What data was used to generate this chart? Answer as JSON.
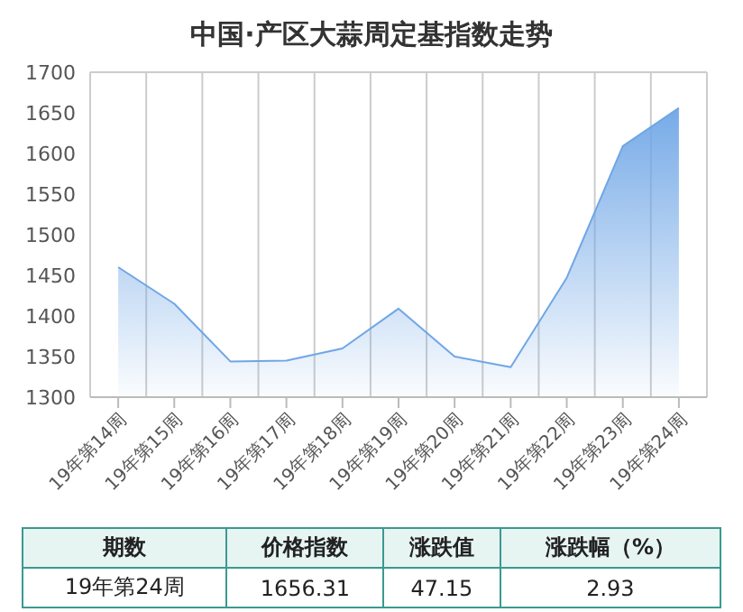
{
  "chart_data": {
    "type": "area",
    "title": "中国·产区大蒜周定基指数走势",
    "categories": [
      "19年第14周",
      "19年第15周",
      "19年第16周",
      "19年第17周",
      "19年第18周",
      "19年第19周",
      "19年第20周",
      "19年第21周",
      "19年第22周",
      "19年第23周",
      "19年第24周"
    ],
    "series": [
      {
        "color": "#6fa6e6",
        "values": [
          1460,
          1415,
          1344,
          1345,
          1360,
          1409,
          1350,
          1337,
          1447,
          1609,
          1656
        ]
      }
    ],
    "ylim": [
      1300,
      1700
    ],
    "yticks": [
      1300,
      1350,
      1400,
      1450,
      1500,
      1550,
      1600,
      1650,
      1700
    ],
    "grid": true,
    "legend": false,
    "annotations": [
      "期数",
      "价格指数",
      "涨跌值",
      "涨跌幅（%）",
      "19年第24周",
      "1656.31",
      "47.15",
      "2.93"
    ]
  }
}
